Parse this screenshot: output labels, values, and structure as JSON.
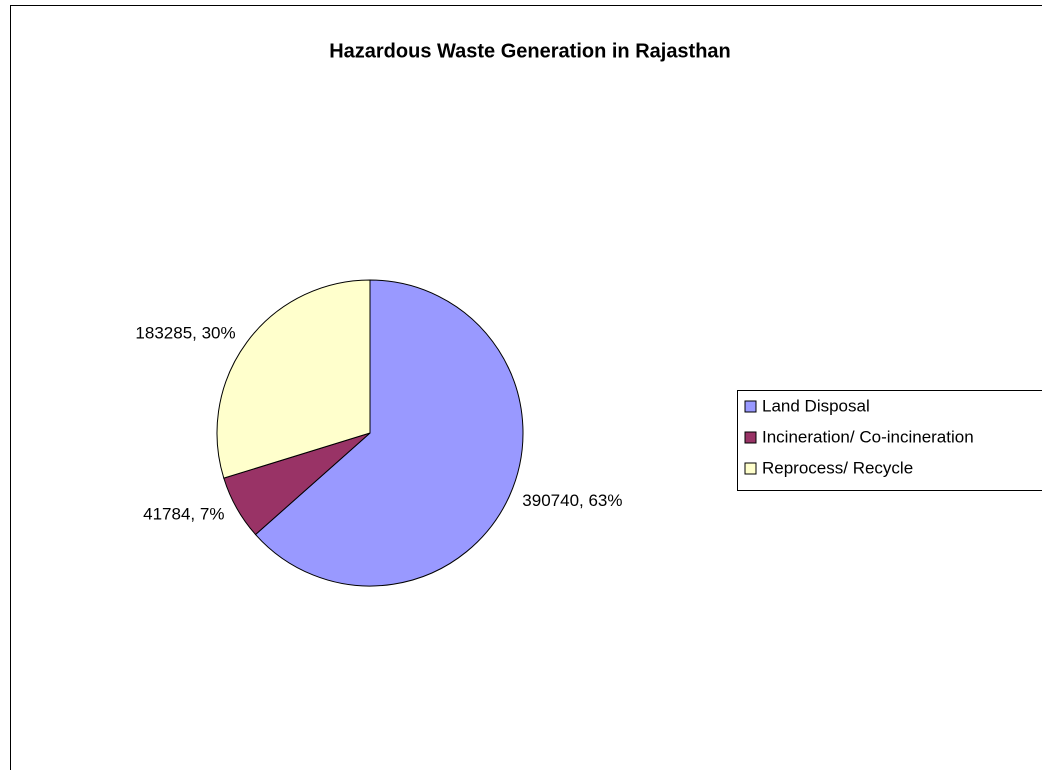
{
  "chart_data": {
    "type": "pie",
    "title": "Hazardous Waste Generation in Rajasthan",
    "categories": [
      "Land Disposal",
      "Incineration/ Co-incineration",
      "Reprocess/ Recycle"
    ],
    "values": [
      390740,
      41784,
      183285
    ],
    "value_labels": [
      "390740, 63%",
      "41784, 7%",
      "183285, 30%"
    ],
    "colors": [
      "#9999ff",
      "#993366",
      "#ffffcc"
    ],
    "legend": "right"
  }
}
